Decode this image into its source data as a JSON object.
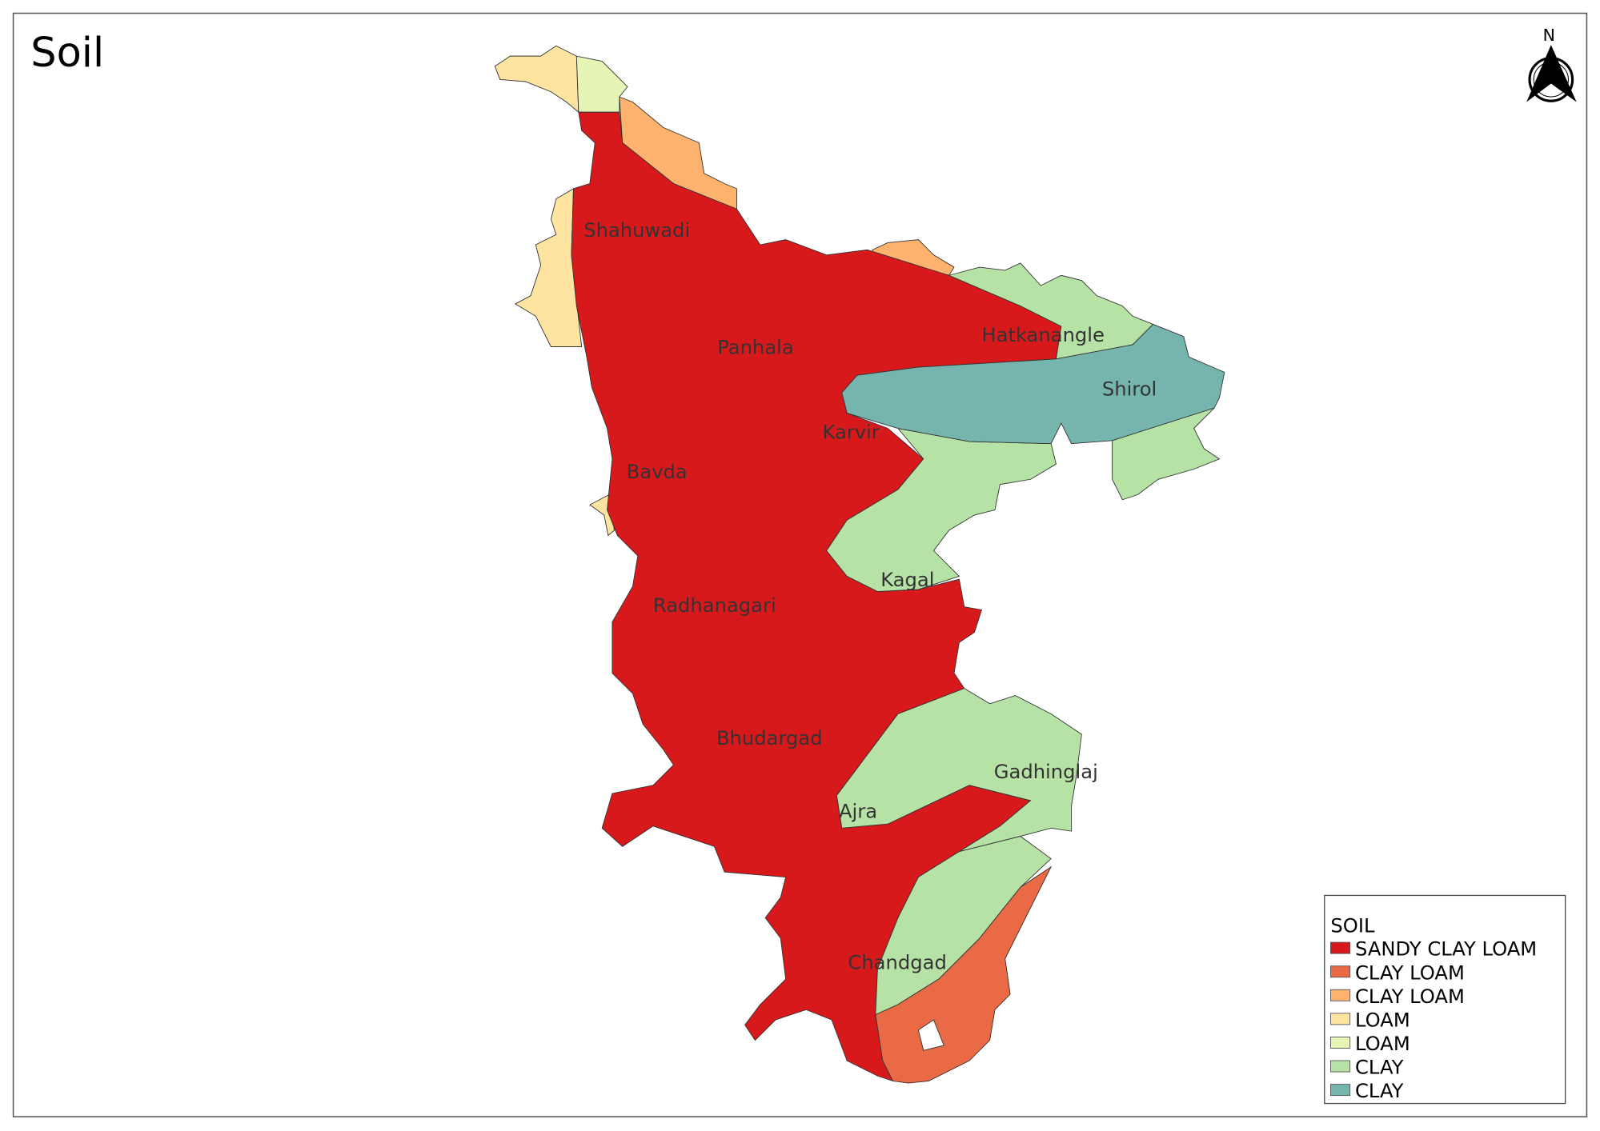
{
  "map": {
    "title": "Soil",
    "north_label": "N",
    "places": [
      "Shahuwadi",
      "Panhala",
      "Hatkanangle",
      "Shirol",
      "Karvir",
      "Bavda",
      "Kagal",
      "Radhanagari",
      "Bhudargad",
      "Gadhinglaj",
      "Ajra",
      "Chandgad"
    ]
  },
  "legend": {
    "title": "SOIL",
    "items": [
      {
        "label": "SANDY CLAY LOAM",
        "color": "#d7191c"
      },
      {
        "label": "CLAY LOAM",
        "color": "#ea6a45"
      },
      {
        "label": "CLAY LOAM",
        "color": "#fdb26e"
      },
      {
        "label": "LOAM",
        "color": "#fee4a0"
      },
      {
        "label": "LOAM",
        "color": "#e6f5b5"
      },
      {
        "label": "CLAY",
        "color": "#b7e2a6"
      },
      {
        "label": "CLAY",
        "color": "#75b5ae"
      }
    ]
  }
}
